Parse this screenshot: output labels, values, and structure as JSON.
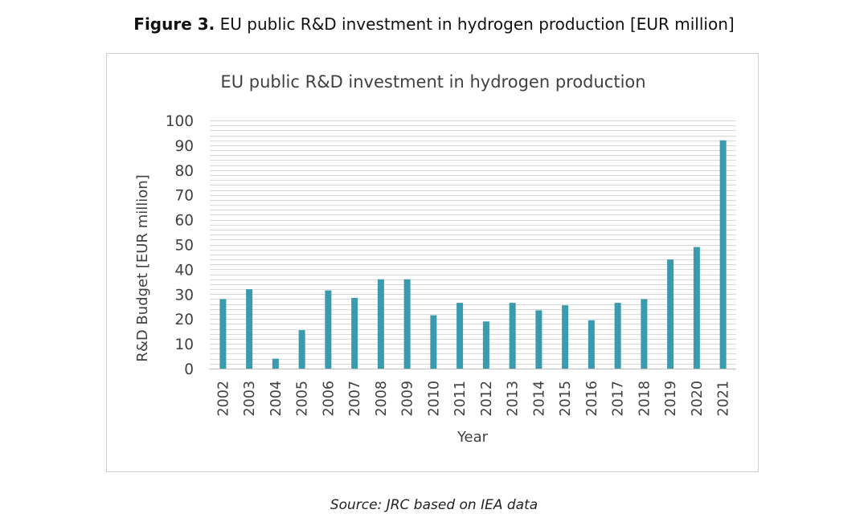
{
  "figure": {
    "label": "Figure 3.",
    "caption": "EU public R&D investment in hydrogen production [EUR million]"
  },
  "source_note": "Source: JRC based on IEA data",
  "colors": {
    "bar": "#3a9aae",
    "grid": "#d9d9d9",
    "text": "#404040"
  },
  "chart_data": {
    "type": "bar",
    "title": "EU public R&D investment in hydrogen production",
    "xlabel": "Year",
    "ylabel": "R&D Budget [EUR million]",
    "ylim": [
      0,
      100
    ],
    "yticks": [
      0,
      10,
      20,
      30,
      40,
      50,
      60,
      70,
      80,
      90,
      100
    ],
    "minor_gridline_step": 2,
    "grid": true,
    "legend": "none",
    "categories": [
      "2002",
      "2003",
      "2004",
      "2005",
      "2006",
      "2007",
      "2008",
      "2009",
      "2010",
      "2011",
      "2012",
      "2013",
      "2014",
      "2015",
      "2016",
      "2017",
      "2018",
      "2019",
      "2020",
      "2021"
    ],
    "values": [
      28,
      32,
      4,
      15.5,
      31.5,
      28.5,
      36,
      36,
      21.5,
      26.5,
      19,
      26.5,
      23.5,
      25.5,
      19.5,
      26.5,
      28,
      44,
      49,
      92
    ]
  }
}
